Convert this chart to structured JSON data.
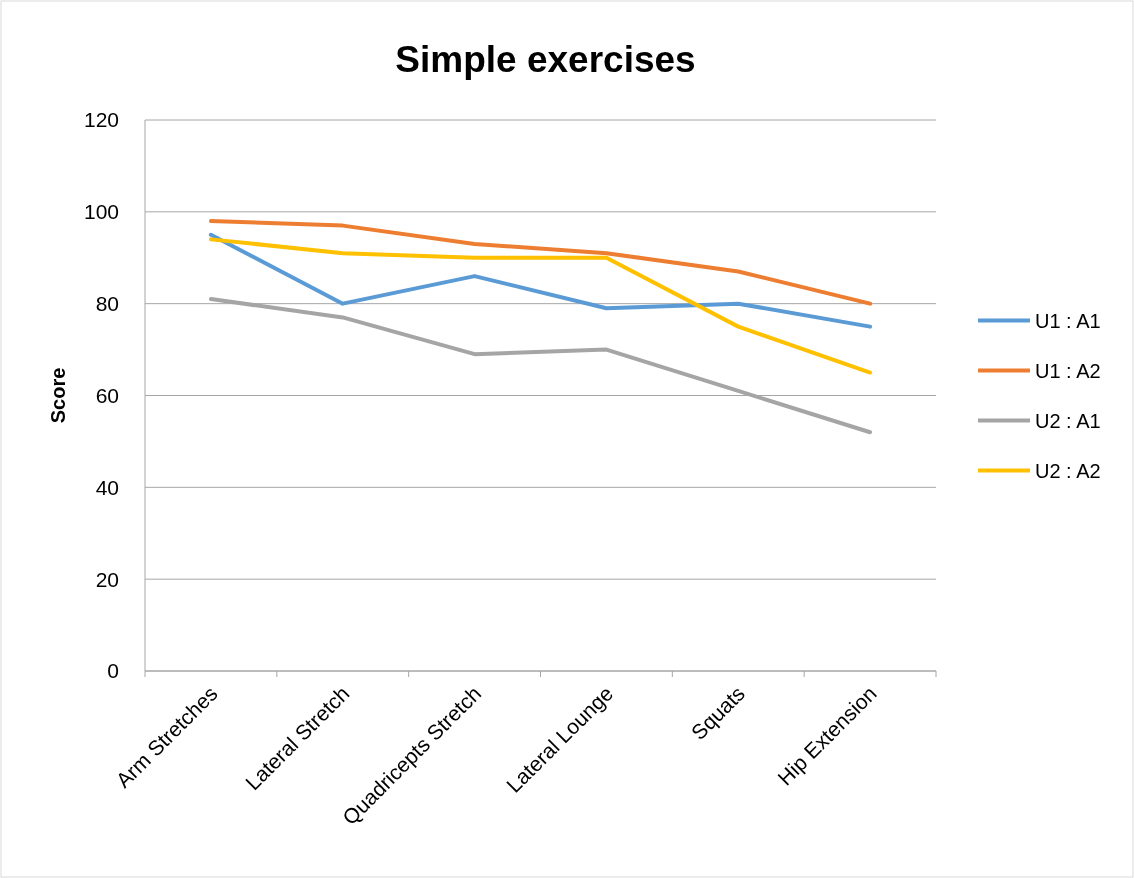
{
  "chart_data": {
    "type": "line",
    "title": "Simple exercises",
    "ylabel": "Score",
    "categories": [
      "Arm Stretches",
      "Lateral Stretch",
      "Quadricepts Stretch",
      "Lateral Lounge",
      "Squats",
      "Hip Extension"
    ],
    "series": [
      {
        "name": "U1 : A1",
        "color": "#5b9bd5",
        "values": [
          95,
          80,
          86,
          79,
          80,
          75
        ]
      },
      {
        "name": "U1 : A2",
        "color": "#ed7d31",
        "values": [
          98,
          97,
          93,
          91,
          87,
          80
        ]
      },
      {
        "name": "U2 : A1",
        "color": "#a5a5a5",
        "values": [
          81,
          77,
          69,
          70,
          61,
          52
        ]
      },
      {
        "name": "U2 : A2",
        "color": "#ffc000",
        "values": [
          94,
          91,
          90,
          90,
          75,
          65
        ]
      }
    ],
    "ylim": [
      0,
      120
    ],
    "yticks": [
      0,
      20,
      40,
      60,
      80,
      100,
      120
    ],
    "grid": "y",
    "legend": "right",
    "marker": "none",
    "line_style": "solid"
  }
}
